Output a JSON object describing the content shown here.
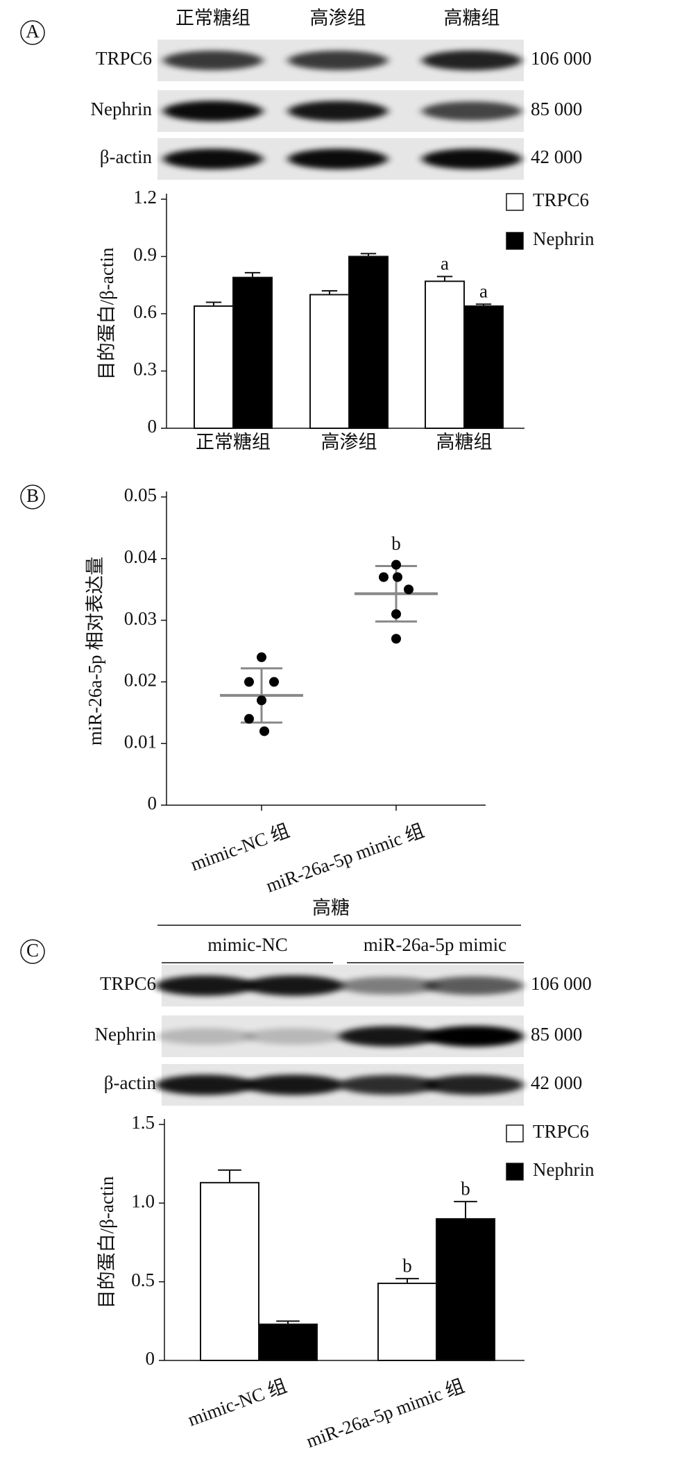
{
  "panel_labels": [
    "A",
    "B",
    "C"
  ],
  "blots": [
    {
      "lanes": [
        "正常糖组",
        "高渗组",
        "高糖组"
      ],
      "proteins": [
        "TRPC6",
        "Nephrin",
        "β-actin"
      ],
      "weights": [
        "106 000",
        "85 000",
        "42 000"
      ]
    },
    {
      "header": "高糖",
      "groups": [
        "mimic-NC",
        "miR-26a-5p mimic"
      ],
      "proteins": [
        "TRPC6",
        "Nephrin",
        "β-actin"
      ],
      "weights": [
        "106 000",
        "85 000",
        "42 000"
      ]
    }
  ],
  "chart_data": [
    {
      "type": "bar",
      "y_label": "目的蛋白/β-actin",
      "categories": [
        "正常糖组",
        "高渗组",
        "高糖组"
      ],
      "series": [
        {
          "name": "TRPC6",
          "color": "#ffffff",
          "values": [
            0.64,
            0.7,
            0.77
          ],
          "errors": [
            0.02,
            0.02,
            0.025
          ],
          "annotations": [
            null,
            null,
            "a"
          ]
        },
        {
          "name": "Nephrin",
          "color": "#000000",
          "values": [
            0.79,
            0.9,
            0.64
          ],
          "errors": [
            0.025,
            0.015,
            0.01
          ],
          "annotations": [
            null,
            null,
            "a"
          ]
        }
      ],
      "ylim": [
        0,
        1.2
      ],
      "yticks": [
        0,
        0.3,
        0.6,
        0.9,
        1.2
      ],
      "legend": "upper right"
    },
    {
      "type": "scatter",
      "y_label": "miR-26a-5p 相对表达量",
      "categories": [
        "mimic-NC 组",
        "miR-26a-5p mimic 组"
      ],
      "groups": [
        {
          "values": [
            0.024,
            0.02,
            0.02,
            0.017,
            0.014,
            0.012
          ],
          "mean": 0.0178,
          "sd": 0.0044,
          "annotation": null
        },
        {
          "values": [
            0.039,
            0.037,
            0.037,
            0.035,
            0.031,
            0.027
          ],
          "mean": 0.0343,
          "sd": 0.0045,
          "annotation": "b"
        }
      ],
      "color": "#000000",
      "summary_color": "#888888",
      "ylim": [
        0,
        0.05
      ],
      "yticks": [
        0,
        0.01,
        0.02,
        0.03,
        0.04,
        0.05
      ]
    },
    {
      "type": "bar",
      "y_label": "目的蛋白/β-actin",
      "categories": [
        "mimic-NC 组",
        "miR-26a-5p mimic 组"
      ],
      "series": [
        {
          "name": "TRPC6",
          "color": "#ffffff",
          "values": [
            1.13,
            0.49
          ],
          "errors": [
            0.08,
            0.03
          ],
          "annotations": [
            null,
            "b"
          ]
        },
        {
          "name": "Nephrin",
          "color": "#000000",
          "values": [
            0.23,
            0.9
          ],
          "errors": [
            0.02,
            0.11
          ],
          "annotations": [
            null,
            "b"
          ]
        }
      ],
      "ylim": [
        0,
        1.5
      ],
      "yticks": [
        0,
        0.5,
        {
          "value": 1,
          "label": "1.0"
        },
        1.5
      ],
      "legend": "upper right"
    }
  ]
}
